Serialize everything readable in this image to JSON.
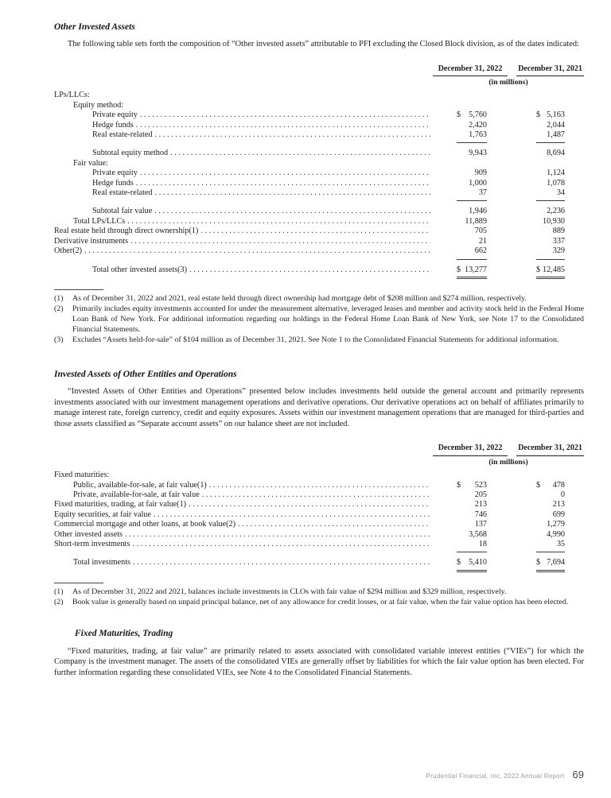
{
  "section1": {
    "heading": "Other Invested Assets",
    "intro": "The following table sets forth the composition of “Other invested assets” attributable to PFI excluding the Closed Block division, as of the dates indicated:",
    "table": {
      "columns": [
        "December 31, 2022",
        "December 31, 2021"
      ],
      "units": "(in millions)",
      "rows": [
        {
          "label": "LPs/LLCs:",
          "indent": 0
        },
        {
          "label": "Equity method:",
          "indent": 1
        },
        {
          "label": "Private equity",
          "indent": 2,
          "leader": true,
          "dollar": true,
          "v2022": "5,760",
          "v2021": "5,163"
        },
        {
          "label": "Hedge funds",
          "indent": 2,
          "leader": true,
          "v2022": "2,420",
          "v2021": "2,044"
        },
        {
          "label": "Real estate-related",
          "indent": 2,
          "leader": true,
          "v2022": "1,763",
          "v2021": "1,487",
          "rule": "single"
        },
        {
          "label": "Subtotal equity method",
          "indent": 2,
          "leader": true,
          "v2022": "9,943",
          "v2021": "8,694",
          "space_above": true
        },
        {
          "label": "Fair value:",
          "indent": 1
        },
        {
          "label": "Private equity",
          "indent": 2,
          "leader": true,
          "v2022": "909",
          "v2021": "1,124"
        },
        {
          "label": "Hedge funds",
          "indent": 2,
          "leader": true,
          "v2022": "1,000",
          "v2021": "1,078"
        },
        {
          "label": "Real estate-related",
          "indent": 2,
          "leader": true,
          "v2022": "37",
          "v2021": "34",
          "rule": "single"
        },
        {
          "label": "Subtotal fair value",
          "indent": 2,
          "leader": true,
          "v2022": "1,946",
          "v2021": "2,236",
          "space_above": true
        },
        {
          "label": "Total LPs/LLCs",
          "indent": 1,
          "leader": true,
          "v2022": "11,889",
          "v2021": "10,930"
        },
        {
          "label": "Real estate held through direct ownership(1)",
          "indent": 0,
          "leader": true,
          "v2022": "705",
          "v2021": "889"
        },
        {
          "label": "Derivative instruments",
          "indent": 0,
          "leader": true,
          "v2022": "21",
          "v2021": "337"
        },
        {
          "label": "Other(2)",
          "indent": 0,
          "leader": true,
          "v2022": "662",
          "v2021": "329",
          "rule": "single"
        },
        {
          "label": "Total other invested assets(3)",
          "indent": 2,
          "leader": true,
          "dollar": true,
          "v2022": "13,277",
          "v2021": "12,485",
          "space_above": true,
          "rule": "double"
        }
      ]
    },
    "footnotes": [
      {
        "num": "(1)",
        "text": "As of December 31, 2022 and 2021, real estate held through direct ownership had mortgage debt of $208 million and $274 million, respectively."
      },
      {
        "num": "(2)",
        "text": "Primarily includes equity investments accounted for under the measurement alternative, leveraged leases and member and activity stock held in the Federal Home Loan Bank of New York. For additional information regarding our holdings in the Federal Home Loan Bank of New York, see Note 17 to the Consolidated Financial Statements."
      },
      {
        "num": "(3)",
        "text": "Excludes “Assets held-for-sale” of $104 million as of December 31, 2021. See Note 1 to the Consolidated Financial Statements for additional information."
      }
    ]
  },
  "section2": {
    "heading": "Invested Assets of Other Entities and Operations",
    "intro": "“Invested Assets of Other Entities and Operations” presented below includes investments held outside the general account and primarily represents investments associated with our investment management operations and derivative operations. Our derivative operations act on behalf of affiliates primarily to manage interest rate, foreign currency, credit and equity exposures. Assets within our investment management operations that are managed for third-parties and those assets classified as “Separate account assets” on our balance sheet are not included.",
    "table": {
      "columns": [
        "December 31, 2022",
        "December 31, 2021"
      ],
      "units": "(in millions)",
      "rows": [
        {
          "label": "Fixed maturities:",
          "indent": 0
        },
        {
          "label": "Public, available-for-sale, at fair value(1)",
          "indent": 1,
          "leader": true,
          "dollar": true,
          "v2022": "523",
          "v2021": "478"
        },
        {
          "label": "Private, available-for-sale, at fair value",
          "indent": 1,
          "leader": true,
          "v2022": "205",
          "v2021": "0"
        },
        {
          "label": "Fixed maturities, trading, at fair value(1)",
          "indent": 0,
          "leader": true,
          "v2022": "213",
          "v2021": "213"
        },
        {
          "label": "Equity securities, at fair value",
          "indent": 0,
          "leader": true,
          "v2022": "746",
          "v2021": "699"
        },
        {
          "label": "Commercial mortgage and other loans, at book value(2)",
          "indent": 0,
          "leader": true,
          "v2022": "137",
          "v2021": "1,279"
        },
        {
          "label": "Other invested assets",
          "indent": 0,
          "leader": true,
          "v2022": "3,568",
          "v2021": "4,990"
        },
        {
          "label": "Short-term investments",
          "indent": 0,
          "leader": true,
          "v2022": "18",
          "v2021": "35",
          "rule": "single"
        },
        {
          "label": "Total investments",
          "indent": 1,
          "leader": true,
          "dollar": true,
          "v2022": "5,410",
          "v2021": "7,694",
          "space_above": true,
          "rule": "double"
        }
      ]
    },
    "footnotes": [
      {
        "num": "(1)",
        "text": "As of December 31, 2022 and 2021, balances include investments in CLOs with fair value of $294 million and $329 million, respectively."
      },
      {
        "num": "(2)",
        "text": "Book value is generally based on unpaid principal balance, net of any allowance for credit losses, or at fair value, when the fair value option has been elected."
      }
    ]
  },
  "section3": {
    "heading": "Fixed Maturities, Trading",
    "body": "“Fixed maturities, trading, at fair value” are primarily related to assets associated with consolidated variable interest entities (“VIEs”) for which the Company is the investment manager. The assets of the consolidated VIEs are generally offset by liabilities for which the fair value option has been elected. For further information regarding these consolidated VIEs, see Note 4 to the Consolidated Financial Statements."
  },
  "footer": {
    "text": "Prudential Financial, Inc. 2022 Annual Report",
    "page_number": "69"
  }
}
